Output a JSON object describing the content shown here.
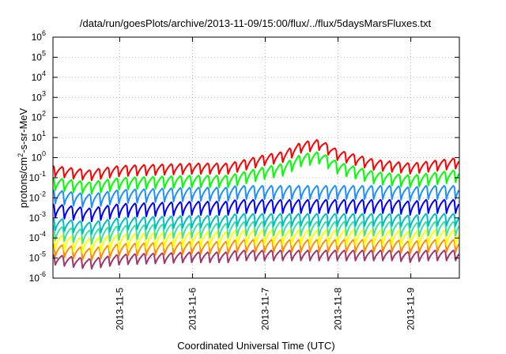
{
  "chart_data": {
    "type": "line",
    "title": "/data/run/goesPlots/archive/2013-11-09/15:00/flux/../flux/5daysMarsFluxes.txt",
    "xlabel": "Coordinated Universal Time (UTC)",
    "ylabel": {
      "pre": "protons/cm",
      "sup": "2",
      "post": "-s-sr-MeV"
    },
    "x_range": [
      "2013-11-04 02:00",
      "2013-11-09 16:00"
    ],
    "x_ticks": [
      "2013-11-5",
      "2013-11-6",
      "2013-11-7",
      "2013-11-8",
      "2013-11-9"
    ],
    "y_scale": "log",
    "y_range": [
      1e-06,
      1000000.0
    ],
    "y_ticks": [
      {
        "base": "10",
        "exp": "-6"
      },
      {
        "base": "10",
        "exp": "-5"
      },
      {
        "base": "10",
        "exp": "-4"
      },
      {
        "base": "10",
        "exp": "-3"
      },
      {
        "base": "10",
        "exp": "-2"
      },
      {
        "base": "10",
        "exp": "-1"
      },
      {
        "base": "10",
        "exp": "0"
      },
      {
        "base": "10",
        "exp": "1"
      },
      {
        "base": "10",
        "exp": "2"
      },
      {
        "base": "10",
        "exp": "3"
      },
      {
        "base": "10",
        "exp": "4"
      },
      {
        "base": "10",
        "exp": "5"
      },
      {
        "base": "10",
        "exp": "6"
      }
    ],
    "grid": true,
    "series": [
      {
        "color": "#a0366b",
        "points": [
          [
            "2013-11-04 02:00",
            1.2e-05
          ],
          [
            "2013-11-04 08:00",
            4e-06
          ],
          [
            "2013-11-04 14:00",
            1.2e-05
          ],
          [
            "2013-11-05 06:00",
            1.2e-05
          ],
          [
            "2013-11-06 06:00",
            1.2e-05
          ],
          [
            "2013-11-07 06:00",
            1.2e-05
          ],
          [
            "2013-11-08 06:00",
            1.2e-05
          ],
          [
            "2013-11-09 06:00",
            1.2e-05
          ],
          [
            "2013-11-09 16:00",
            1.2e-05
          ]
        ],
        "sawtooth": {
          "low": 4e-06,
          "high": 1.5e-05
        }
      },
      {
        "color": "#ff8c00",
        "sawtooth": {
          "low": 1e-05,
          "high": 5e-05
        }
      },
      {
        "color": "#ffff00",
        "sawtooth": {
          "low": 2e-05,
          "high": 0.00015
        }
      },
      {
        "color": "#40e0a0",
        "sawtooth": {
          "low": 6e-05,
          "high": 0.0004
        }
      },
      {
        "color": "#00c0c0",
        "sawtooth": {
          "low": 0.0002,
          "high": 0.001
        }
      },
      {
        "color": "#0000ff",
        "sawtooth": {
          "low": 0.0008,
          "high": 0.005
        }
      },
      {
        "color": "#1e90ff",
        "sawtooth": {
          "low": 0.004,
          "high": 0.025
        }
      },
      {
        "color": "#00ff00",
        "sawtooth": {
          "low": 0.02,
          "high": 0.1
        }
      },
      {
        "color": "#ff0000",
        "sawtooth": {
          "low": 0.1,
          "high": 0.4
        }
      }
    ],
    "trend": {
      "x": [
        "2013-11-04 02:00",
        "2013-11-04 14:00",
        "2013-11-05 00:00",
        "2013-11-06 00:00",
        "2013-11-06 12:00",
        "2013-11-07 00:00",
        "2013-11-07 06:00",
        "2013-11-07 12:00",
        "2013-11-07 18:00",
        "2013-11-08 00:00",
        "2013-11-08 12:00",
        "2013-11-09 00:00",
        "2013-11-09 16:00"
      ],
      "factor": [
        1.0,
        0.6,
        1.0,
        1.3,
        1.3,
        3.5,
        5.0,
        15.0,
        20.0,
        6.0,
        2.0,
        1.3,
        2.5
      ]
    }
  }
}
